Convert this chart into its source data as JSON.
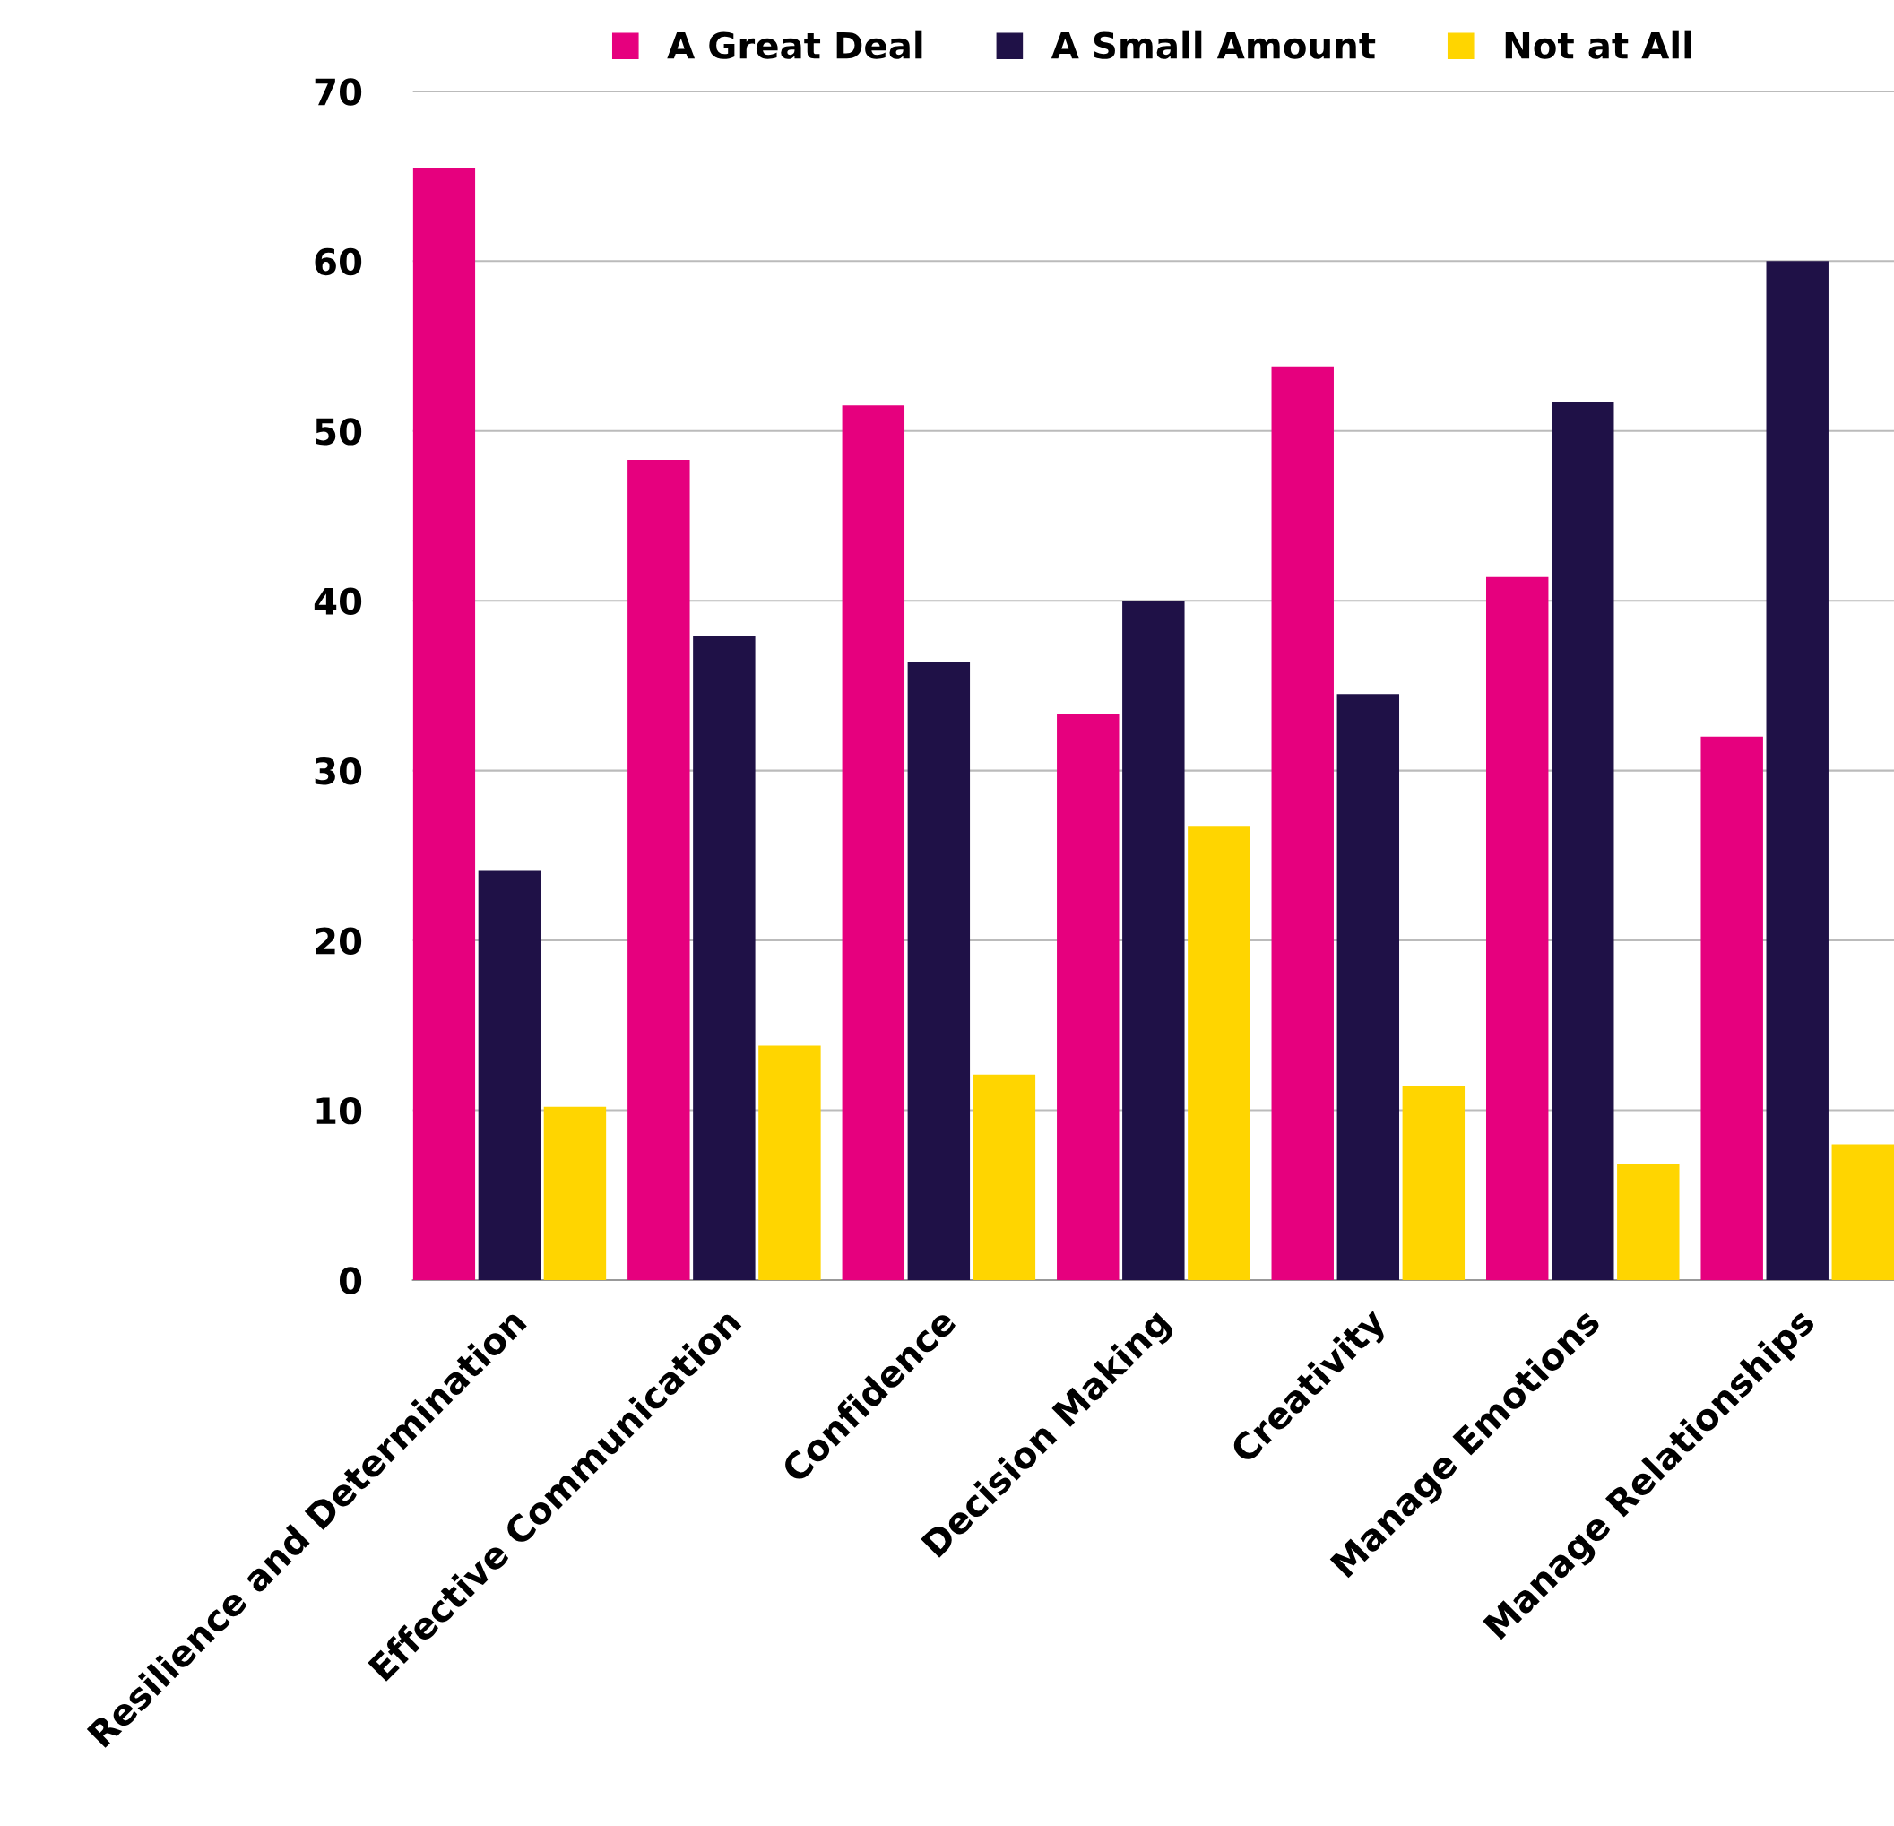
{
  "chart_data": {
    "type": "bar",
    "categories": [
      "Resilience and Determination",
      "Effective Communication",
      "Confidence",
      "Decision Making",
      "Creativity",
      "Manage Emotions",
      "Manage Relationships"
    ],
    "series": [
      {
        "name": "A Great Deal",
        "color": "#e6007e",
        "values": [
          65.5,
          48.3,
          51.5,
          33.3,
          53.8,
          41.4,
          32.0
        ]
      },
      {
        "name": "A Small Amount",
        "color": "#1f1147",
        "values": [
          24.1,
          37.9,
          36.4,
          40.0,
          34.5,
          51.7,
          60.0
        ]
      },
      {
        "name": "Not at All",
        "color": "#ffd500",
        "values": [
          10.2,
          13.8,
          12.1,
          26.7,
          11.4,
          6.8,
          8.0
        ]
      }
    ],
    "ylim": [
      0,
      70
    ],
    "yticks": [
      0,
      10,
      20,
      30,
      40,
      50,
      60,
      70
    ],
    "grid": "y",
    "legend": "top"
  }
}
